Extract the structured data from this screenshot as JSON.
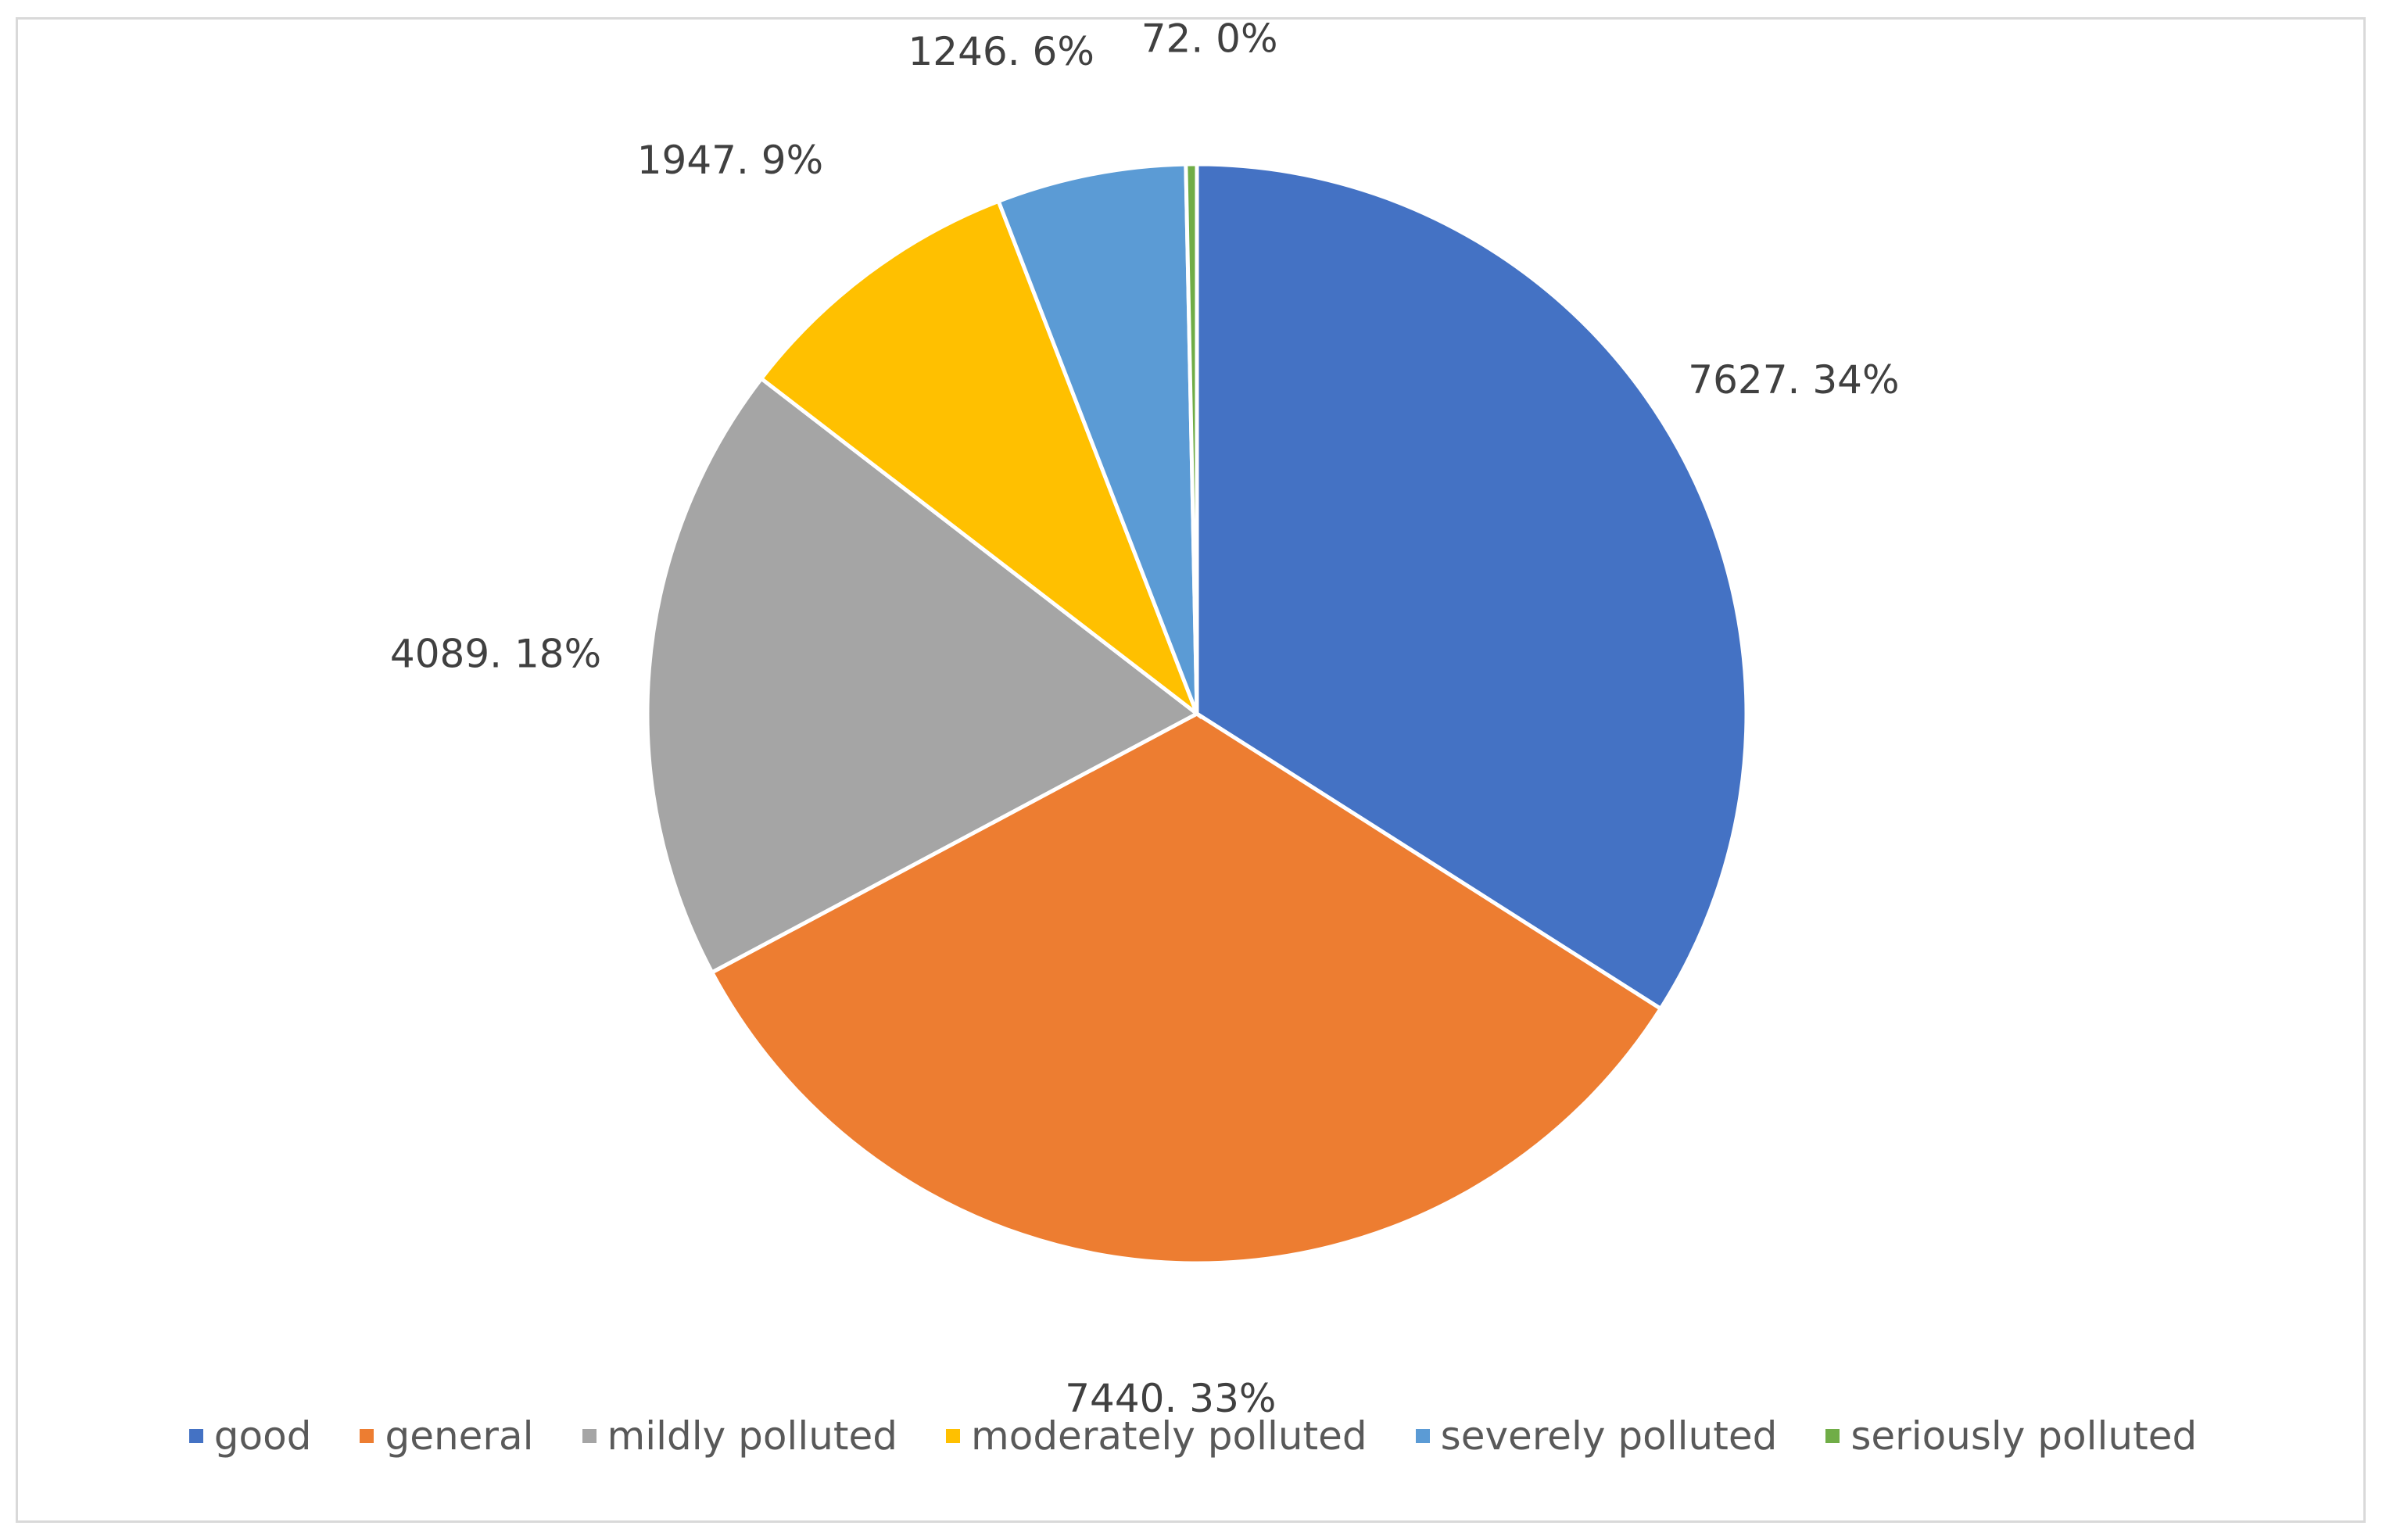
{
  "chart_data": {
    "type": "pie",
    "title": "",
    "legend_position": "bottom",
    "categories": [
      "good",
      "general",
      "mildly polluted",
      "moderately polluted",
      "severely polluted",
      "seriously polluted"
    ],
    "values": [
      7627,
      7440,
      4089,
      1947,
      1246,
      72
    ],
    "labels": [
      "7627. 34%",
      "7440. 33%",
      "4089. 18%",
      "1947. 9%",
      "1246. 6%",
      "72. 0%"
    ],
    "colors": [
      "#4472c4",
      "#ed7d31",
      "#a5a5a5",
      "#ffc000",
      "#5b9bd5",
      "#70ad47"
    ]
  }
}
